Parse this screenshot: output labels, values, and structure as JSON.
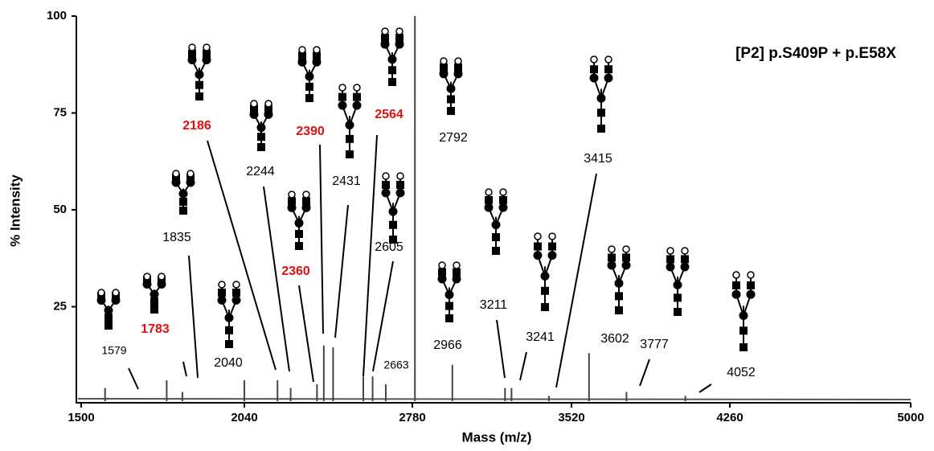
{
  "chart_data": {
    "type": "spectrum",
    "title": "[P2] p.S409P + p.E58X",
    "x_label": "Mass (m/z)",
    "y_label": "% Intensity",
    "x": [
      1579,
      1783,
      1835,
      2040,
      2186,
      2244,
      2360,
      2390,
      2431,
      2564,
      2605,
      2663,
      2792,
      2966,
      3211,
      3241,
      3415,
      3602,
      3777,
      4052
    ],
    "values": [
      4,
      6,
      3,
      6,
      6,
      4,
      5,
      15,
      14.5,
      7,
      7,
      5,
      100,
      10,
      4,
      4,
      2,
      13,
      3,
      2
    ],
    "label_colors": [
      "#000000",
      "#e01010",
      "#000000",
      "#000000",
      "#e01010",
      "#000000",
      "#e01010",
      "#e01010",
      "#000000",
      "#e01010",
      "#000000",
      "#000000",
      "#000000",
      "#000000",
      "#000000",
      "#000000",
      "#000000",
      "#000000",
      "#000000",
      "#000000"
    ],
    "color": "#444444",
    "xlim": [
      1500,
      5000
    ],
    "xticks": [
      1500,
      2040,
      2780,
      3520,
      4260,
      5000
    ],
    "ylim": [
      0,
      100
    ],
    "yticks": [
      25,
      50,
      75,
      100
    ]
  }
}
